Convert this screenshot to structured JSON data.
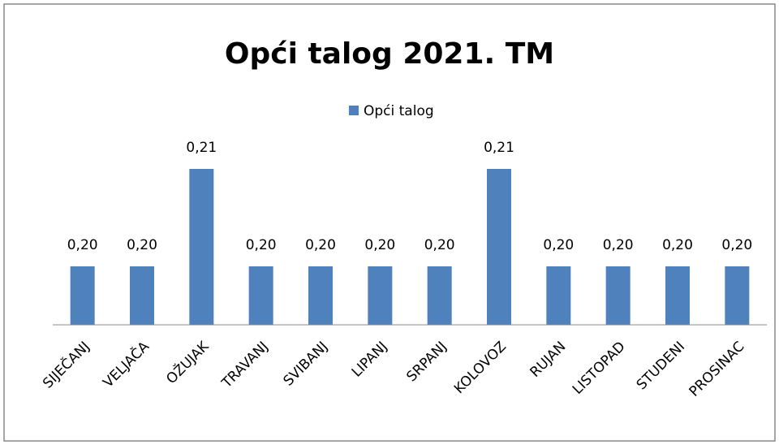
{
  "chart_data": {
    "type": "bar",
    "title": "Opći talog 2021. TM",
    "categories": [
      "SIJEČANJ",
      "VELJAČA",
      "OŽUJAK",
      "TRAVANJ",
      "SVIBANJ",
      "LIPANJ",
      "SRPANJ",
      "KOLOVOZ",
      "RUJAN",
      "LISTOPAD",
      "STUDENI",
      "PROSINAC"
    ],
    "series": [
      {
        "name": "Opći talog",
        "color": "#4f81bd",
        "values": [
          0.2,
          0.2,
          0.21,
          0.2,
          0.2,
          0.2,
          0.2,
          0.21,
          0.2,
          0.2,
          0.2,
          0.2
        ],
        "value_labels": [
          "0,20",
          "0,20",
          "0,21",
          "0,20",
          "0,20",
          "0,20",
          "0,20",
          "0,21",
          "0,20",
          "0,20",
          "0,20",
          "0,20"
        ]
      }
    ],
    "ylim": [
      0.194,
      0.212
    ],
    "legend": "top"
  }
}
